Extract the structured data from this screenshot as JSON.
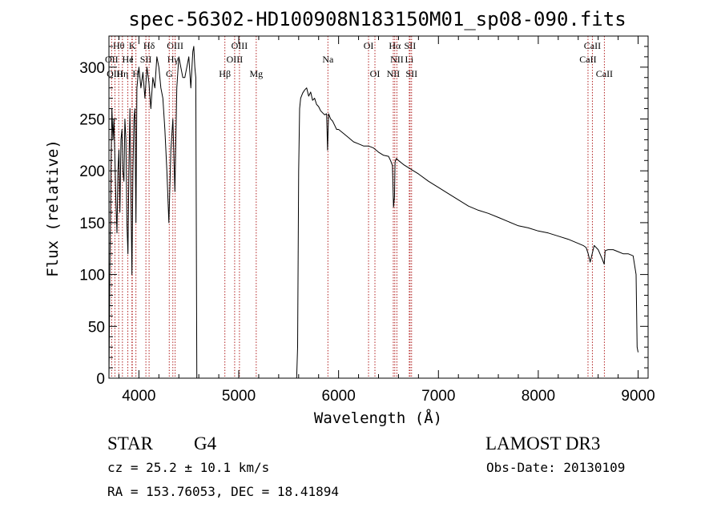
{
  "chart_data": {
    "type": "line",
    "title": "spec-56302-HD100908N183150M01_sp08-090.fits",
    "xlabel": "Wavelength (Å)",
    "ylabel": "Flux (relative)",
    "xlim": [
      3700,
      9100
    ],
    "ylim": [
      0,
      330
    ],
    "xticks": [
      4000,
      5000,
      6000,
      7000,
      8000,
      9000
    ],
    "yticks": [
      0,
      50,
      100,
      150,
      200,
      250,
      300
    ],
    "xtick_labels": [
      "4000",
      "5000",
      "6000",
      "7000",
      "8000",
      "9000"
    ],
    "ytick_labels": [
      "0",
      "50",
      "100",
      "150",
      "200",
      "250",
      "300"
    ],
    "series": [
      {
        "name": "flux",
        "x": [
          3700,
          3710,
          3720,
          3730,
          3740,
          3750,
          3760,
          3770,
          3780,
          3790,
          3800,
          3810,
          3820,
          3830,
          3840,
          3850,
          3860,
          3870,
          3880,
          3890,
          3900,
          3910,
          3920,
          3930,
          3940,
          3950,
          3960,
          3970,
          3980,
          3990,
          4000,
          4020,
          4040,
          4060,
          4080,
          4100,
          4120,
          4140,
          4160,
          4180,
          4200,
          4220,
          4240,
          4260,
          4280,
          4300,
          4320,
          4340,
          4360,
          4380,
          4400,
          4420,
          4440,
          4460,
          4480,
          4500,
          4520,
          4540,
          4550,
          4560,
          4570,
          4580,
          4590,
          4600,
          4700,
          4800,
          4900,
          5000,
          5100,
          5200,
          5300,
          5400,
          5500,
          5580,
          5590,
          5600,
          5610,
          5620,
          5640,
          5660,
          5680,
          5700,
          5720,
          5740,
          5760,
          5780,
          5800,
          5820,
          5840,
          5860,
          5880,
          5890,
          5895,
          5900,
          5920,
          5940,
          5960,
          5980,
          6000,
          6050,
          6100,
          6150,
          6200,
          6250,
          6300,
          6350,
          6400,
          6450,
          6500,
          6520,
          6540,
          6550,
          6560,
          6565,
          6570,
          6580,
          6600,
          6650,
          6700,
          6750,
          6800,
          6900,
          7000,
          7100,
          7200,
          7300,
          7400,
          7500,
          7600,
          7700,
          7800,
          7900,
          8000,
          8100,
          8200,
          8300,
          8400,
          8450,
          8480,
          8500,
          8520,
          8540,
          8560,
          8580,
          8600,
          8640,
          8660,
          8670,
          8700,
          8750,
          8800,
          8850,
          8900,
          8950,
          8980,
          8990,
          9000
        ],
        "y": [
          0,
          110,
          200,
          260,
          230,
          250,
          210,
          170,
          140,
          200,
          220,
          160,
          230,
          240,
          200,
          190,
          250,
          230,
          150,
          120,
          200,
          260,
          180,
          100,
          200,
          250,
          260,
          150,
          280,
          290,
          300,
          280,
          295,
          270,
          300,
          285,
          260,
          290,
          280,
          310,
          300,
          280,
          270,
          240,
          200,
          150,
          220,
          250,
          180,
          280,
          310,
          300,
          290,
          290,
          300,
          310,
          280,
          315,
          320,
          300,
          290,
          0,
          0,
          0,
          0,
          0,
          0,
          0,
          0,
          0,
          0,
          0,
          0,
          0,
          30,
          200,
          260,
          270,
          275,
          278,
          280,
          272,
          276,
          268,
          270,
          264,
          262,
          258,
          256,
          254,
          255,
          220,
          240,
          255,
          250,
          248,
          244,
          240,
          240,
          236,
          232,
          228,
          226,
          224,
          224,
          222,
          218,
          215,
          214,
          210,
          205,
          165,
          175,
          208,
          210,
          212,
          210,
          206,
          203,
          200,
          197,
          190,
          184,
          178,
          172,
          166,
          162,
          159,
          155,
          151,
          147,
          145,
          142,
          140,
          137,
          134,
          130,
          128,
          126,
          120,
          112,
          120,
          128,
          126,
          124,
          115,
          110,
          123,
          124,
          124,
          122,
          120,
          120,
          118,
          100,
          30,
          25
        ]
      }
    ],
    "line_markers": [
      {
        "label": "Hθ",
        "x": 3798,
        "row": 1
      },
      {
        "label": "OII",
        "x": 3727,
        "row": 2
      },
      {
        "label": "OIII",
        "x": 3760,
        "row": 3
      },
      {
        "label": "Hη",
        "x": 3835,
        "row": 3
      },
      {
        "label": "K",
        "x": 3934,
        "row": 1
      },
      {
        "label": "He",
        "x": 3889,
        "row": 2
      },
      {
        "label": "I",
        "x": 3930,
        "row": 2
      },
      {
        "label": "H",
        "x": 3970,
        "row": 3
      },
      {
        "label": "Hδ",
        "x": 4102,
        "row": 1
      },
      {
        "label": "SII",
        "x": 4070,
        "row": 2
      },
      {
        "label": "OIII",
        "x": 4363,
        "row": 1
      },
      {
        "label": "Hγ",
        "x": 4340,
        "row": 2
      },
      {
        "label": "G",
        "x": 4304,
        "row": 3
      },
      {
        "label": "OIII",
        "x": 5007,
        "row": 1
      },
      {
        "label": "OIII",
        "x": 4959,
        "row": 2
      },
      {
        "label": "Hβ",
        "x": 4861,
        "row": 3
      },
      {
        "label": "Mg",
        "x": 5175,
        "row": 3
      },
      {
        "label": "Na",
        "x": 5893,
        "row": 2
      },
      {
        "label": "OI",
        "x": 6300,
        "row": 1
      },
      {
        "label": "OI",
        "x": 6364,
        "row": 3
      },
      {
        "label": "Hα",
        "x": 6563,
        "row": 1
      },
      {
        "label": "SII",
        "x": 6716,
        "row": 1
      },
      {
        "label": "NII",
        "x": 6584,
        "row": 2
      },
      {
        "label": "Li",
        "x": 6708,
        "row": 2
      },
      {
        "label": "NII",
        "x": 6548,
        "row": 3
      },
      {
        "label": "SII",
        "x": 6731,
        "row": 3
      },
      {
        "label": "CaII",
        "x": 8542,
        "row": 1
      },
      {
        "label": "CaII",
        "x": 8498,
        "row": 2
      },
      {
        "label": "CaII",
        "x": 8662,
        "row": 3
      }
    ],
    "marker_color": "#b22222"
  },
  "info": {
    "object_class": "STAR",
    "subclass": "G4",
    "survey": "LAMOST DR3",
    "cz": "cz = 25.2 ± 10.1 km/s",
    "obs_date": "Obs-Date: 20130109",
    "coords": "RA = 153.76053, DEC =  18.41894"
  }
}
